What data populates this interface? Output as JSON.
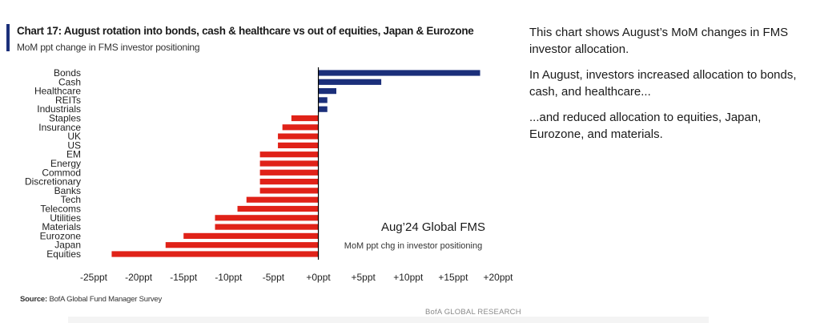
{
  "header": {
    "title": "Chart 17: August rotation into bonds, cash & healthcare vs out of equities, Japan & Eurozone",
    "subtitle": "MoM ppt change in FMS investor positioning"
  },
  "footer": {
    "source_label": "Source:",
    "source_text": "BofA Global Fund Manager Survey",
    "brand": "BofA GLOBAL RESEARCH"
  },
  "commentary": [
    "This chart shows August’s MoM changes in FMS investor allocation.",
    "In August, investors increased allocation to bonds, cash, and healthcare...",
    "...and reduced allocation to equities, Japan, Eurozone, and materials."
  ],
  "colors": {
    "positive": "#1b2f7a",
    "negative": "#e02218",
    "accent": "#1b2f7a"
  },
  "chart_data": {
    "type": "bar",
    "orientation": "horizontal",
    "categories": [
      "Bonds",
      "Cash",
      "Healthcare",
      "REITs",
      "Industrials",
      "Staples",
      "Insurance",
      "UK",
      "US",
      "EM",
      "Energy",
      "Commod",
      "Discretionary",
      "Banks",
      "Tech",
      "Telecoms",
      "Utilities",
      "Materials",
      "Eurozone",
      "Japan",
      "Equities"
    ],
    "values": [
      18,
      7,
      2,
      1,
      1,
      -3,
      -4,
      -4.5,
      -4.5,
      -6.5,
      -6.5,
      -6.5,
      -6.5,
      -6.5,
      -8,
      -9,
      -11.5,
      -11.5,
      -15,
      -17,
      -23
    ],
    "xlim": [
      -25,
      20
    ],
    "xticks": [
      -25,
      -20,
      -15,
      -10,
      -5,
      0,
      5,
      10,
      15,
      20
    ],
    "xtick_labels": [
      "-25ppt",
      "-20ppt",
      "-15ppt",
      "-10ppt",
      "-5ppt",
      "+0ppt",
      "+5ppt",
      "+10ppt",
      "+15ppt",
      "+20ppt"
    ],
    "annotation_title": "Aug’24 Global FMS",
    "annotation_subtitle": "MoM ppt chg in investor positioning"
  }
}
